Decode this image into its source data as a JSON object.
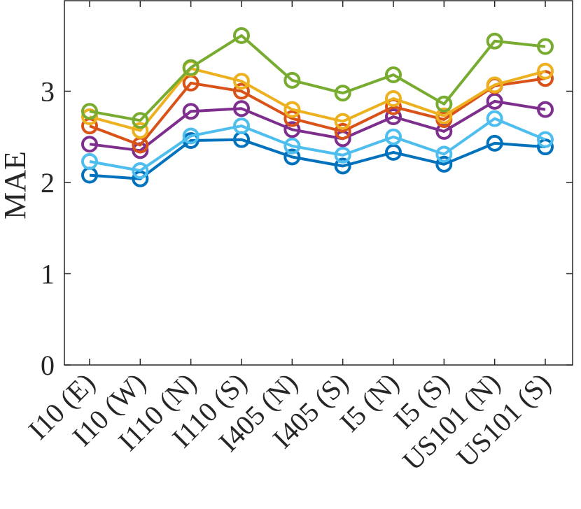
{
  "chart_data": {
    "type": "line",
    "title": "",
    "xlabel": "",
    "ylabel": "MAE",
    "ylim": [
      0,
      4
    ],
    "yticks": [
      0,
      1,
      2,
      3
    ],
    "grid": false,
    "legend": "none",
    "categories": [
      "I10 (E)",
      "I10 (W)",
      "I110 (N)",
      "I110 (S)",
      "I405 (N)",
      "I405 (S)",
      "I5 (N)",
      "I5 (S)",
      "US101 (N)",
      "US101 (S)"
    ],
    "series": [
      {
        "color": "#0072BD",
        "values": [
          2.08,
          2.04,
          2.46,
          2.47,
          2.28,
          2.18,
          2.33,
          2.2,
          2.43,
          2.39
        ]
      },
      {
        "color": "#4DBEEE",
        "values": [
          2.23,
          2.13,
          2.51,
          2.62,
          2.4,
          2.3,
          2.5,
          2.31,
          2.7,
          2.47
        ]
      },
      {
        "color": "#7E2F8E",
        "values": [
          2.42,
          2.35,
          2.78,
          2.81,
          2.58,
          2.48,
          2.72,
          2.56,
          2.89,
          2.8
        ]
      },
      {
        "color": "#D95319",
        "values": [
          2.62,
          2.41,
          3.09,
          3.0,
          2.7,
          2.56,
          2.83,
          2.69,
          3.06,
          3.14
        ]
      },
      {
        "color": "#EDB120",
        "values": [
          2.72,
          2.57,
          3.25,
          3.11,
          2.8,
          2.67,
          2.92,
          2.73,
          3.07,
          3.22
        ]
      },
      {
        "color": "#77AC30",
        "values": [
          2.78,
          2.68,
          3.26,
          3.61,
          3.12,
          2.98,
          3.18,
          2.86,
          3.55,
          3.49
        ]
      }
    ]
  }
}
